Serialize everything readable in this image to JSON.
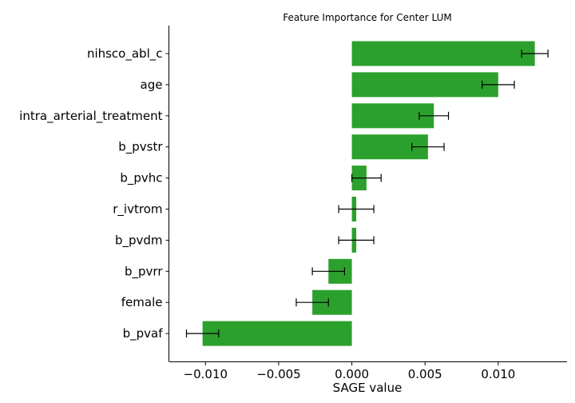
{
  "chart_data": {
    "type": "bar",
    "orientation": "horizontal",
    "title": "Feature Importance for Center LUM",
    "xlabel": "SAGE value",
    "ylabel": "",
    "categories": [
      "nihsco_abl_c",
      "age",
      "intra_arterial_treatment",
      "b_pvstr",
      "b_pvhc",
      "r_ivtrom",
      "b_pvdm",
      "b_pvrr",
      "female",
      "b_pvaf"
    ],
    "values": [
      0.0125,
      0.01,
      0.0056,
      0.0052,
      0.001,
      0.0003,
      0.0003,
      -0.0016,
      -0.0027,
      -0.0102
    ],
    "errors": [
      0.0009,
      0.0011,
      0.001,
      0.0011,
      0.001,
      0.0012,
      0.0012,
      0.0011,
      0.0011,
      0.0011
    ],
    "xlim": [
      -0.0125,
      0.0147
    ],
    "xticks": [
      -0.01,
      -0.005,
      0.0,
      0.005,
      0.01
    ],
    "xtick_labels": [
      "−0.010",
      "−0.005",
      "0.000",
      "0.005",
      "0.010"
    ],
    "bar_color": "#2ca02c",
    "grid": false,
    "legend": "none"
  }
}
